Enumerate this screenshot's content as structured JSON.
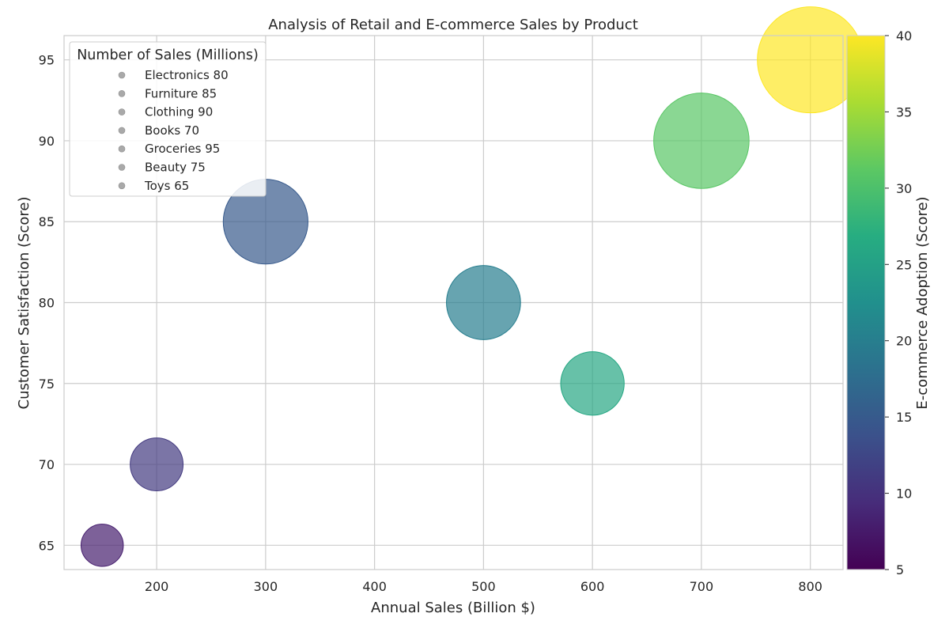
{
  "chart_data": {
    "type": "scatter",
    "subtype": "bubble",
    "title": "Analysis of Retail and E-commerce Sales by Product",
    "xlabel": "Annual Sales (Billion $)",
    "ylabel": "Customer Satisfaction (Score)",
    "colorbar_label": "E-commerce Adoption (Score)",
    "xlim": [
      115,
      830
    ],
    "ylim": [
      63.5,
      96.5
    ],
    "x_ticks": [
      200,
      300,
      400,
      500,
      600,
      700,
      800
    ],
    "y_ticks": [
      65,
      70,
      75,
      80,
      85,
      90,
      95
    ],
    "color_range": [
      5,
      40
    ],
    "colorbar_ticks": [
      5,
      10,
      15,
      20,
      25,
      30,
      35,
      40
    ],
    "colormap": "viridis",
    "grid": true,
    "legend": {
      "title": "Number of Sales (Millions)",
      "placement": "upper-left",
      "marker_color": "#a9a9a9",
      "entries": [
        "Electronics 80",
        "Furniture 85",
        "Clothing 90",
        "Books 70",
        "Groceries 95",
        "Beauty 75",
        "Toys 65"
      ]
    },
    "points": [
      {
        "x": 150,
        "y": 65,
        "adoption": 8,
        "sales": 65
      },
      {
        "x": 200,
        "y": 70,
        "adoption": 11,
        "sales": 70
      },
      {
        "x": 300,
        "y": 85,
        "adoption": 15,
        "sales": 85
      },
      {
        "x": 500,
        "y": 80,
        "adoption": 20,
        "sales": 80
      },
      {
        "x": 600,
        "y": 75,
        "adoption": 26,
        "sales": 75
      },
      {
        "x": 700,
        "y": 90,
        "adoption": 31,
        "sales": 90
      },
      {
        "x": 800,
        "y": 95,
        "adoption": 40,
        "sales": 95
      }
    ]
  }
}
